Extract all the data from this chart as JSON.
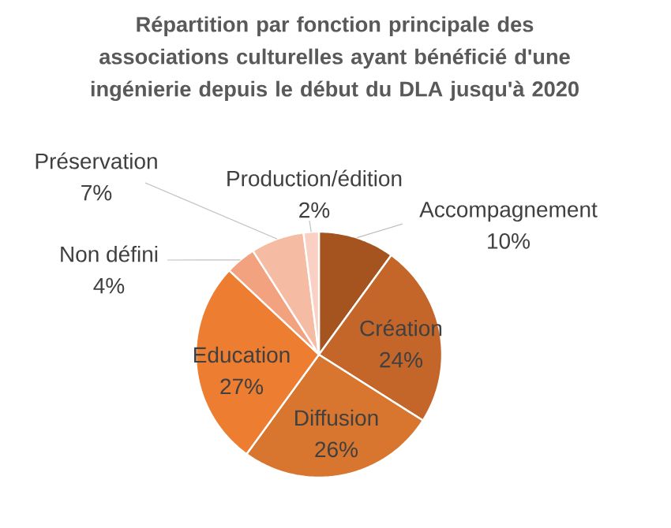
{
  "chart_data": {
    "type": "pie",
    "title": "Répartition par fonction principale des associations culturelles ayant bénéficié d'une ingénierie depuis le début du DLA jusqu'à 2020",
    "categories": [
      "Accompagnement",
      "Création",
      "Diffusion",
      "Education",
      "Non défini",
      "Préservation",
      "Production/édition"
    ],
    "values": [
      10,
      24,
      26,
      27,
      4,
      7,
      2
    ],
    "value_labels": [
      "10%",
      "24%",
      "26%",
      "27%",
      "4%",
      "7%",
      "2%"
    ],
    "colors": [
      "#a5541f",
      "#c4662a",
      "#d8762f",
      "#ed7d31",
      "#f2a27e",
      "#f6bba3",
      "#f9d0c3"
    ]
  }
}
